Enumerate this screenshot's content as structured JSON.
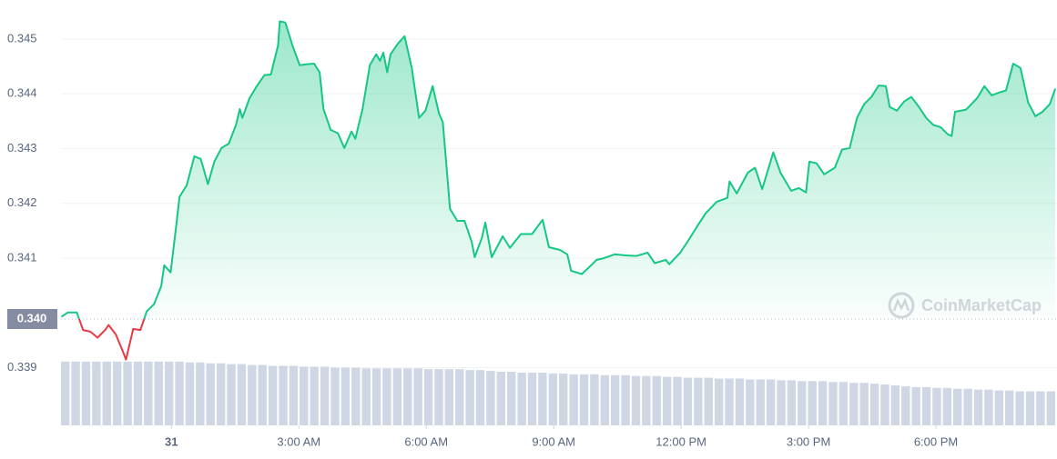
{
  "chart_data": {
    "type": "line",
    "up_color": "#16c784",
    "down_color": "#ea3943",
    "grid": true,
    "watermark": "CoinMarketCap",
    "xlim": [
      -2.6,
      20.85
    ],
    "xticks": [
      {
        "value": 0,
        "label": "31"
      },
      {
        "value": 3,
        "label": "3:00 AM"
      },
      {
        "value": 6,
        "label": "6:00 AM"
      },
      {
        "value": 9,
        "label": "9:00 AM"
      },
      {
        "value": 12,
        "label": "12:00 PM"
      },
      {
        "value": 15,
        "label": "3:00 PM"
      },
      {
        "value": 18,
        "label": "6:00 PM"
      }
    ],
    "ylim": [
      0.33795,
      0.34571
    ],
    "yticks": [
      0.339,
      0.341,
      0.342,
      0.343,
      0.344,
      0.345
    ],
    "reference": {
      "value": 0.33989,
      "label": "0.340"
    },
    "x": [
      -2.59,
      -2.44,
      -2.23,
      -2.08,
      -1.91,
      -1.74,
      -1.56,
      -1.48,
      -1.31,
      -1.16,
      -1.07,
      -0.9,
      -0.73,
      -0.58,
      -0.41,
      -0.24,
      -0.17,
      -0.02,
      0.11,
      0.19,
      0.36,
      0.54,
      0.69,
      0.86,
      1.01,
      1.18,
      1.35,
      1.52,
      1.61,
      1.67,
      1.84,
      2.01,
      2.19,
      2.34,
      2.51,
      2.55,
      2.68,
      2.85,
      3.02,
      3.19,
      3.36,
      3.49,
      3.58,
      3.75,
      3.92,
      4.07,
      4.24,
      4.33,
      4.5,
      4.67,
      4.82,
      4.91,
      4.99,
      5.08,
      5.16,
      5.34,
      5.49,
      5.66,
      5.83,
      5.98,
      6.15,
      6.3,
      6.39,
      6.56,
      6.73,
      6.9,
      7.07,
      7.14,
      7.31,
      7.39,
      7.54,
      7.8,
      7.97,
      8.23,
      8.49,
      8.74,
      8.89,
      9.15,
      9.32,
      9.41,
      9.66,
      9.84,
      10.01,
      10.18,
      10.44,
      10.69,
      10.95,
      11.21,
      11.38,
      11.64,
      11.72,
      11.98,
      12.15,
      12.41,
      12.58,
      12.84,
      13.09,
      13.14,
      13.31,
      13.57,
      13.74,
      13.91,
      14.17,
      14.34,
      14.59,
      14.77,
      14.94,
      15.02,
      15.19,
      15.37,
      15.62,
      15.79,
      15.97,
      16.14,
      16.31,
      16.48,
      16.65,
      16.82,
      16.91,
      17.08,
      17.25,
      17.42,
      17.59,
      17.77,
      17.94,
      18.11,
      18.28,
      18.37,
      18.45,
      18.71,
      18.97,
      19.14,
      19.31,
      19.48,
      19.65,
      19.82,
      19.99,
      20.17,
      20.34,
      20.51,
      20.68,
      20.81
    ],
    "values": [
      0.33993,
      0.34001,
      0.34001,
      0.33969,
      0.33966,
      0.33955,
      0.33969,
      0.33978,
      0.33961,
      0.33933,
      0.33915,
      0.33971,
      0.33969,
      0.34003,
      0.34016,
      0.34049,
      0.34087,
      0.34074,
      0.34157,
      0.34212,
      0.34233,
      0.34286,
      0.34281,
      0.34235,
      0.34276,
      0.34301,
      0.34309,
      0.34343,
      0.34372,
      0.34356,
      0.34392,
      0.34414,
      0.34434,
      0.34435,
      0.34488,
      0.34532,
      0.3453,
      0.34488,
      0.34452,
      0.34454,
      0.34455,
      0.34439,
      0.34372,
      0.34334,
      0.34328,
      0.34301,
      0.34331,
      0.34318,
      0.34372,
      0.34452,
      0.34472,
      0.3446,
      0.34475,
      0.34439,
      0.34472,
      0.34492,
      0.34505,
      0.34447,
      0.34356,
      0.34369,
      0.34414,
      0.34364,
      0.34348,
      0.3419,
      0.34168,
      0.34168,
      0.3413,
      0.34102,
      0.34137,
      0.34165,
      0.34102,
      0.3414,
      0.34119,
      0.34144,
      0.34144,
      0.3417,
      0.3412,
      0.34115,
      0.34107,
      0.34077,
      0.34071,
      0.34084,
      0.34097,
      0.341,
      0.34107,
      0.34105,
      0.34104,
      0.3411,
      0.34091,
      0.34097,
      0.34089,
      0.3411,
      0.3413,
      0.34162,
      0.34182,
      0.34203,
      0.3421,
      0.3424,
      0.34218,
      0.34256,
      0.34265,
      0.34226,
      0.34293,
      0.34256,
      0.34223,
      0.34228,
      0.3422,
      0.34276,
      0.34273,
      0.34253,
      0.34265,
      0.34298,
      0.34301,
      0.34356,
      0.34381,
      0.34394,
      0.34415,
      0.34414,
      0.34376,
      0.34369,
      0.34386,
      0.34394,
      0.34377,
      0.34356,
      0.34343,
      0.34339,
      0.34326,
      0.34323,
      0.34367,
      0.34371,
      0.34392,
      0.34414,
      0.34397,
      0.34402,
      0.34406,
      0.34455,
      0.34447,
      0.34384,
      0.34359,
      0.34367,
      0.34381,
      0.34409
    ],
    "y2lim": [
      0,
      500
    ],
    "volume": {
      "axis": "y2",
      "color": "#cfd6e4",
      "values": [
        75,
        75,
        75,
        75,
        75,
        75,
        75,
        75,
        75,
        75,
        75,
        75,
        74,
        74,
        73,
        73,
        72,
        72,
        71,
        71,
        70,
        70,
        70,
        69,
        69,
        69,
        68,
        68,
        68,
        67,
        67,
        67,
        67,
        67,
        67,
        66,
        66,
        66,
        66,
        65,
        65,
        64,
        63,
        63,
        62,
        62,
        62,
        61,
        61,
        60,
        60,
        60,
        59,
        59,
        59,
        58,
        58,
        58,
        57,
        57,
        56,
        56,
        56,
        55,
        55,
        55,
        54,
        54,
        54,
        53,
        53,
        52,
        52,
        52,
        51,
        51,
        50,
        50,
        49,
        48,
        47,
        46,
        45,
        45,
        44,
        44,
        43,
        43,
        42,
        42,
        41,
        41,
        40,
        40,
        40,
        40
      ]
    }
  }
}
